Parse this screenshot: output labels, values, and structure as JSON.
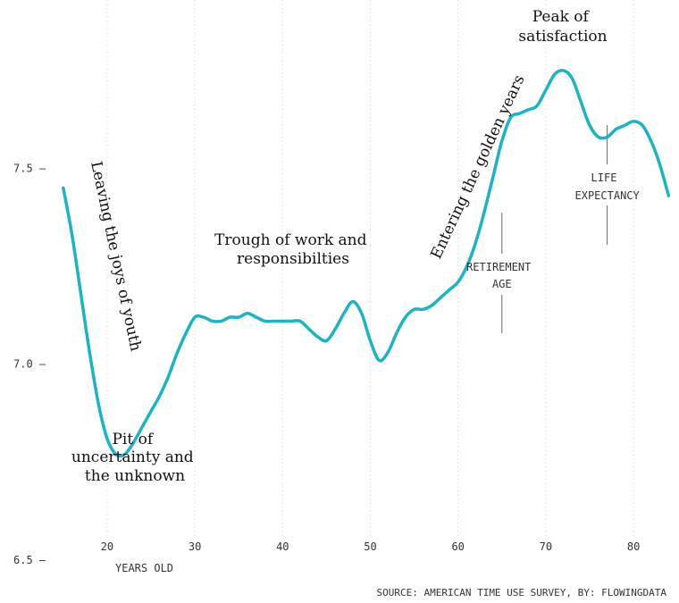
{
  "chart_data": {
    "type": "line",
    "title": "",
    "xlabel": "YEARS OLD",
    "ylabel": "",
    "xlim": [
      14,
      86
    ],
    "ylim": [
      6.42,
      7.93
    ],
    "x_ticks": [
      20,
      30,
      40,
      50,
      60,
      70,
      80
    ],
    "y_ticks": [
      6.5,
      7.0,
      7.5
    ],
    "x_tick_labels": [
      "20",
      "30",
      "40",
      "50",
      "60",
      "70",
      "80"
    ],
    "y_tick_labels": [
      "6.5 —",
      "7.0 —",
      "7.5 —"
    ],
    "grid": true,
    "line_color": "#1ab4c4",
    "series": [
      {
        "x": [
          15,
          16,
          17,
          18,
          19,
          20,
          21,
          22,
          23,
          24,
          25,
          26,
          27,
          28,
          29,
          30,
          31,
          32,
          33,
          34,
          35,
          36,
          37,
          38,
          39,
          40,
          41,
          42,
          43,
          44,
          45,
          46,
          47,
          48,
          49,
          50,
          51,
          52,
          53,
          54,
          55,
          56,
          57,
          58,
          59,
          60,
          61,
          62,
          63,
          64,
          65,
          66,
          67,
          68,
          69,
          70,
          71,
          72,
          73,
          74,
          75,
          76,
          77,
          78,
          79,
          80,
          81,
          82,
          83,
          84
        ],
        "y": [
          7.45,
          7.33,
          7.18,
          7.03,
          6.9,
          6.81,
          6.77,
          6.77,
          6.8,
          6.84,
          6.88,
          6.92,
          6.97,
          7.03,
          7.08,
          7.12,
          7.12,
          7.11,
          7.11,
          7.12,
          7.12,
          7.13,
          7.12,
          7.11,
          7.11,
          7.11,
          7.11,
          7.11,
          7.09,
          7.07,
          7.06,
          7.09,
          7.13,
          7.16,
          7.13,
          7.06,
          7.01,
          7.03,
          7.08,
          7.12,
          7.14,
          7.14,
          7.15,
          7.17,
          7.19,
          7.21,
          7.25,
          7.31,
          7.39,
          7.48,
          7.57,
          7.63,
          7.64,
          7.65,
          7.66,
          7.7,
          7.74,
          7.75,
          7.73,
          7.67,
          7.61,
          7.58,
          7.58,
          7.6,
          7.61,
          7.62,
          7.61,
          7.57,
          7.51,
          7.43
        ]
      }
    ],
    "annotations": {
      "youth": "Leaving the joys of youth",
      "pit_lines": [
        "Pit of",
        "uncertainty and",
        "the unknown"
      ],
      "trough_lines": [
        "Trough of work and",
        "responsibilties"
      ],
      "golden": "Entering the golden years",
      "peak_lines": [
        "Peak of",
        "satisfaction"
      ],
      "retirement": {
        "lines": [
          "RETIREMENT",
          "AGE"
        ],
        "x": 65
      },
      "life_expectancy": {
        "lines": [
          "LIFE",
          "EXPECTANCY"
        ],
        "x": 77
      }
    },
    "source": "SOURCE: AMERICAN TIME USE SURVEY, BY: FLOWINGDATA"
  }
}
